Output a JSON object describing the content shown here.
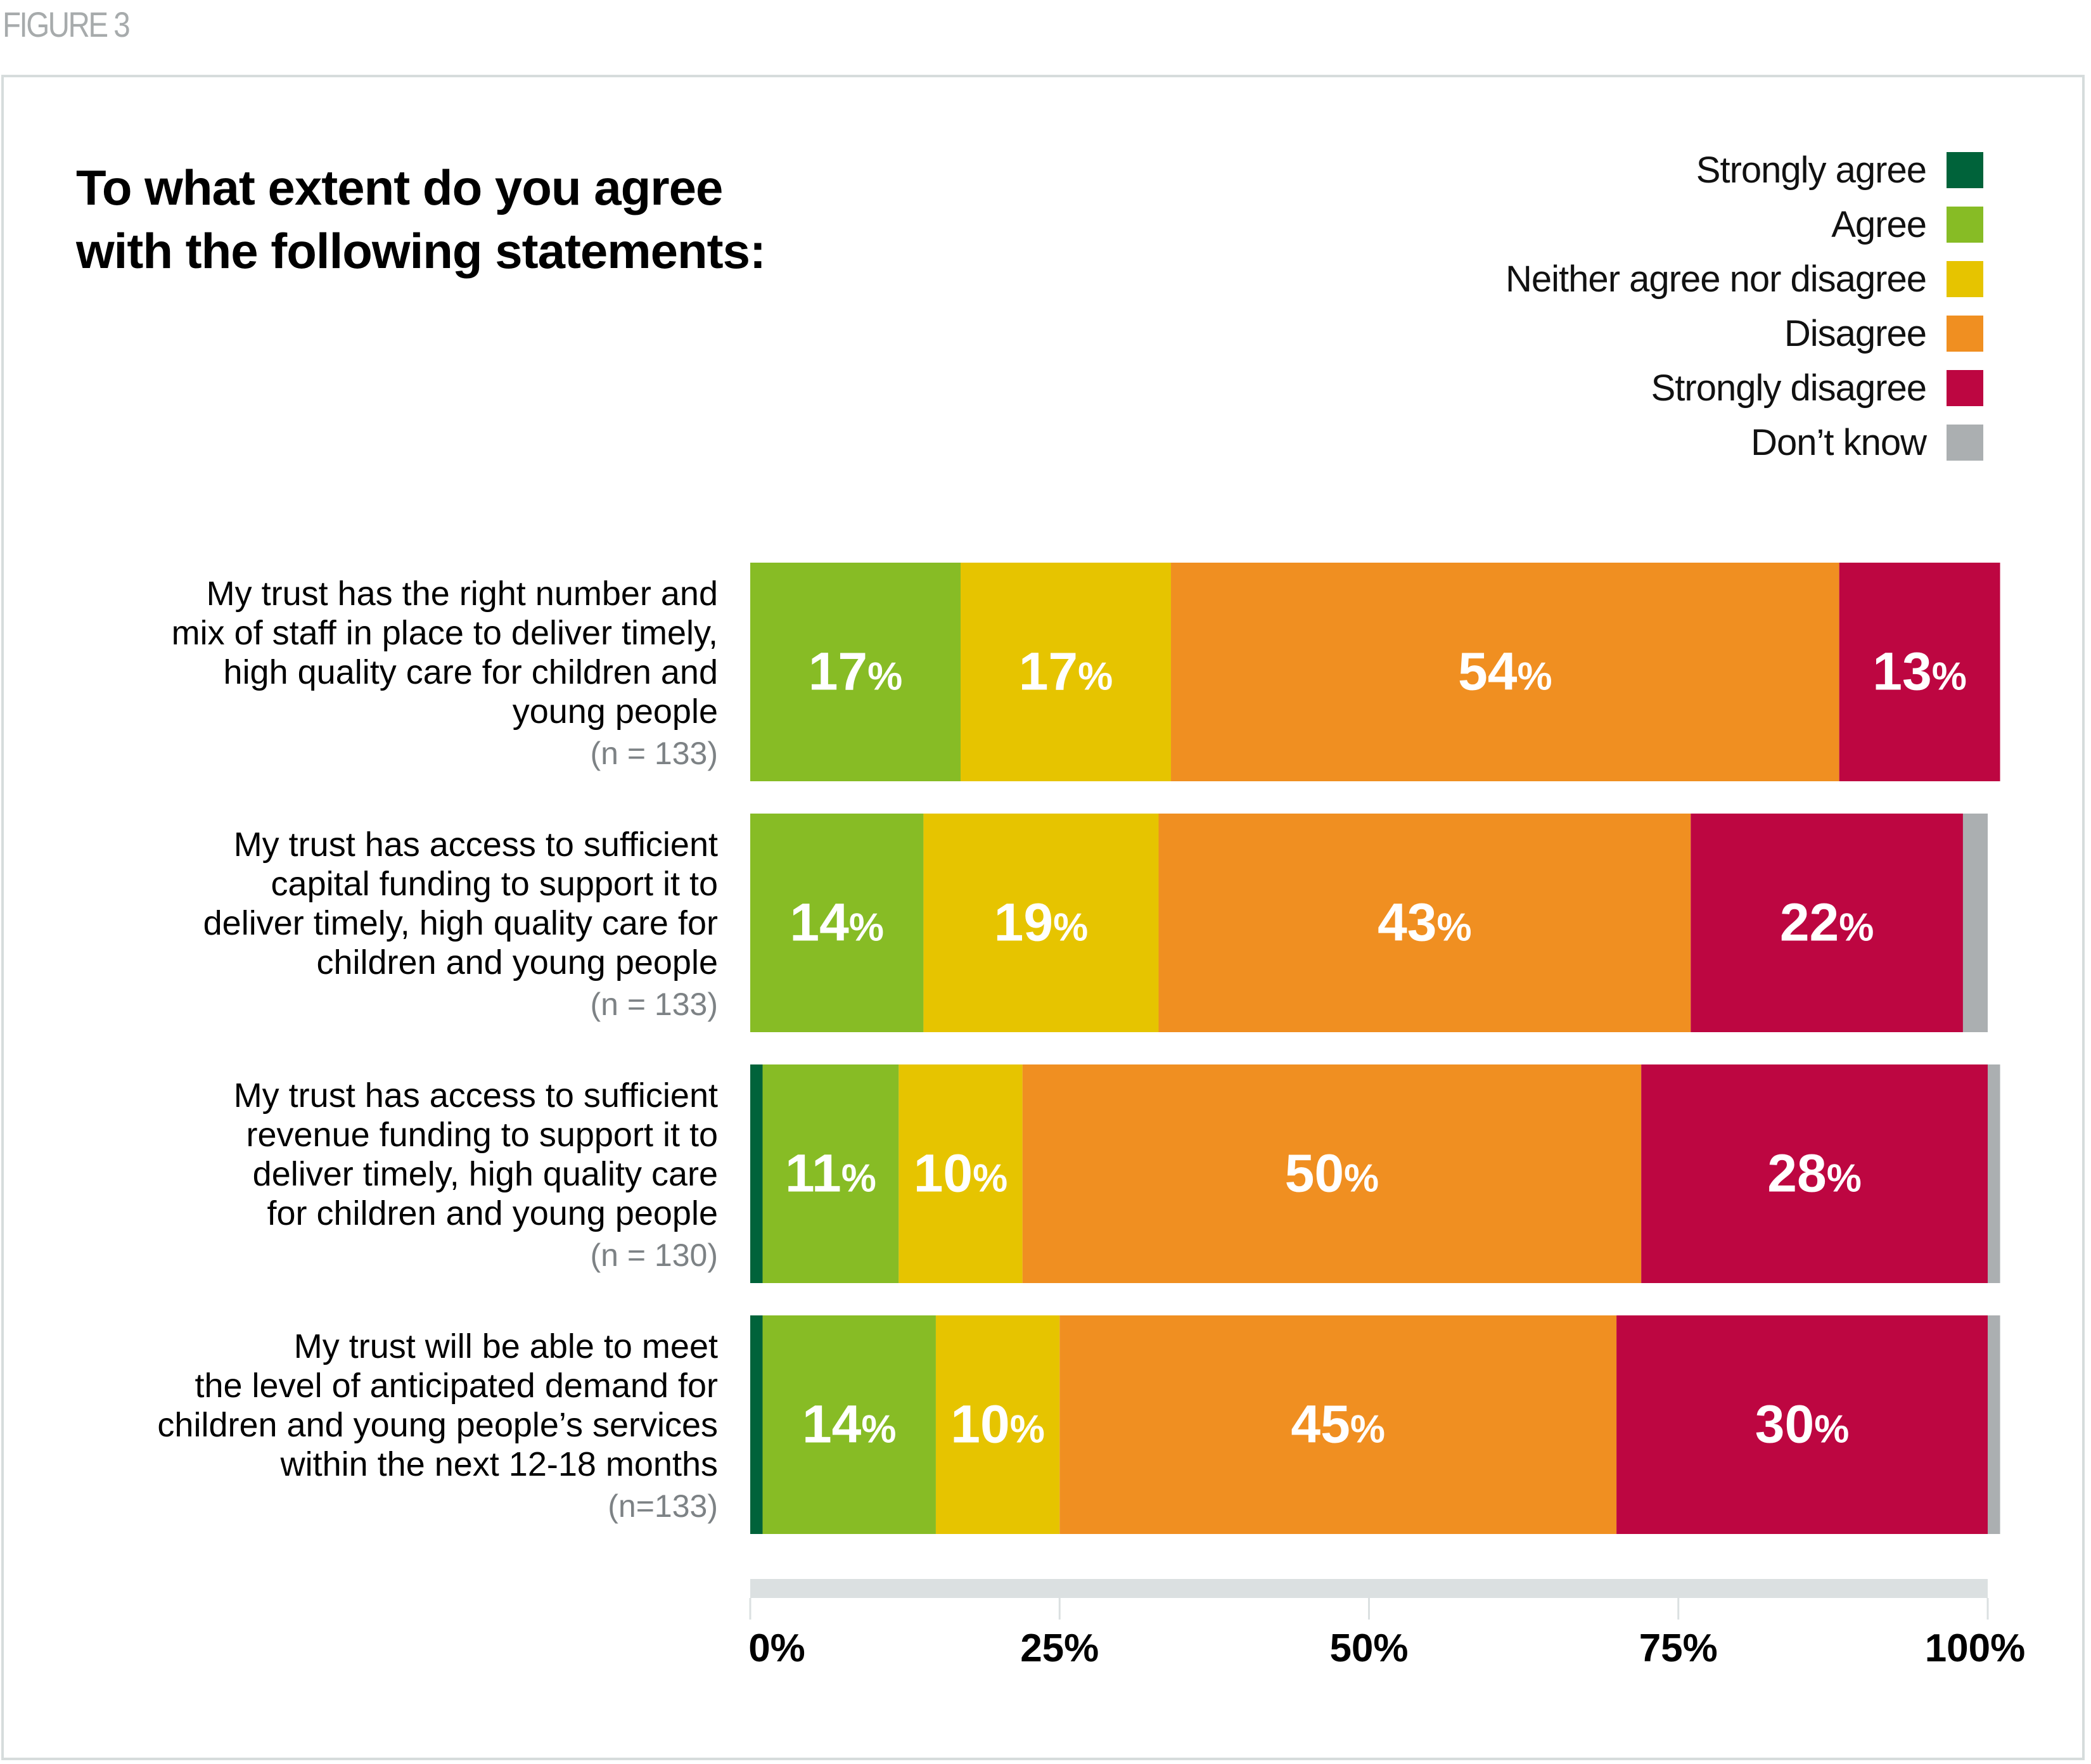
{
  "figure_label": "FIGURE 3",
  "title_lines": [
    "To what extent do you agree",
    "with the following statements:"
  ],
  "legend": [
    {
      "label": "Strongly agree",
      "color": "#00633a"
    },
    {
      "label": "Agree",
      "color": "#87bc25"
    },
    {
      "label": "Neither agree nor disagree",
      "color": "#e6c400"
    },
    {
      "label": "Disagree",
      "color": "#f08f21"
    },
    {
      "label": "Strongly disagree",
      "color": "#bd0641"
    },
    {
      "label": "Don’t know",
      "color": "#abafb1"
    }
  ],
  "rows": [
    {
      "lines": [
        "My trust has the right number and",
        "mix of staff in place to deliver timely,",
        "high quality care for children and",
        "young people"
      ],
      "n": "(n = 133)"
    },
    {
      "lines": [
        "My trust has access to sufficient",
        "capital funding to support it to",
        "deliver timely, high quality care for",
        "children and young people"
      ],
      "n": "(n = 133)"
    },
    {
      "lines": [
        "My trust has access to sufficient",
        "revenue funding to support it to",
        "deliver timely, high quality care",
        "for children and young people"
      ],
      "n": "(n = 130)"
    },
    {
      "lines": [
        "My trust will be able to meet",
        "the level of anticipated demand for",
        "children and young people’s services",
        "within the next 12-18 months"
      ],
      "n": "(n=133)"
    }
  ],
  "chart_data": {
    "type": "bar",
    "orientation": "horizontal",
    "stacked": true,
    "title": "To what extent do you agree with the following statements:",
    "categories": [
      "My trust has the right number and mix of staff in place to deliver timely, high quality care for children and young people (n=133)",
      "My trust has access to sufficient capital funding to support it to deliver timely, high quality care for children and young people (n=133)",
      "My trust has access to sufficient revenue funding to support it to deliver timely, high quality care for children and young people (n=130)",
      "My trust will be able to meet the level of anticipated demand for children and young people's services within the next 12-18 months (n=133)"
    ],
    "series": [
      {
        "name": "Strongly agree",
        "color": "#00633a",
        "values": [
          0,
          0,
          1,
          1
        ],
        "labels": [
          "",
          "",
          "",
          ""
        ]
      },
      {
        "name": "Agree",
        "color": "#87bc25",
        "values": [
          17,
          14,
          11,
          14
        ],
        "labels": [
          "17%",
          "14%",
          "11%",
          "14%"
        ]
      },
      {
        "name": "Neither agree nor disagree",
        "color": "#e6c400",
        "values": [
          17,
          19,
          10,
          10
        ],
        "labels": [
          "17%",
          "19%",
          "10%",
          "10%"
        ]
      },
      {
        "name": "Disagree",
        "color": "#f08f21",
        "values": [
          54,
          43,
          50,
          45
        ],
        "labels": [
          "54%",
          "43%",
          "50%",
          "45%"
        ]
      },
      {
        "name": "Strongly disagree",
        "color": "#bd0641",
        "values": [
          13,
          22,
          28,
          30
        ],
        "labels": [
          "13%",
          "22%",
          "28%",
          "30%"
        ]
      },
      {
        "name": "Don’t know",
        "color": "#abafb1",
        "values": [
          0,
          2,
          1,
          1
        ],
        "labels": [
          "",
          "",
          "",
          ""
        ]
      }
    ],
    "xlim": [
      0,
      100
    ],
    "xticks": [
      0,
      25,
      50,
      75,
      100
    ],
    "xtick_labels": [
      "0%",
      "25%",
      "50%",
      "75%",
      "100%"
    ],
    "xlabel": "",
    "ylabel": "",
    "legend_position": "top-right",
    "grid": false
  }
}
